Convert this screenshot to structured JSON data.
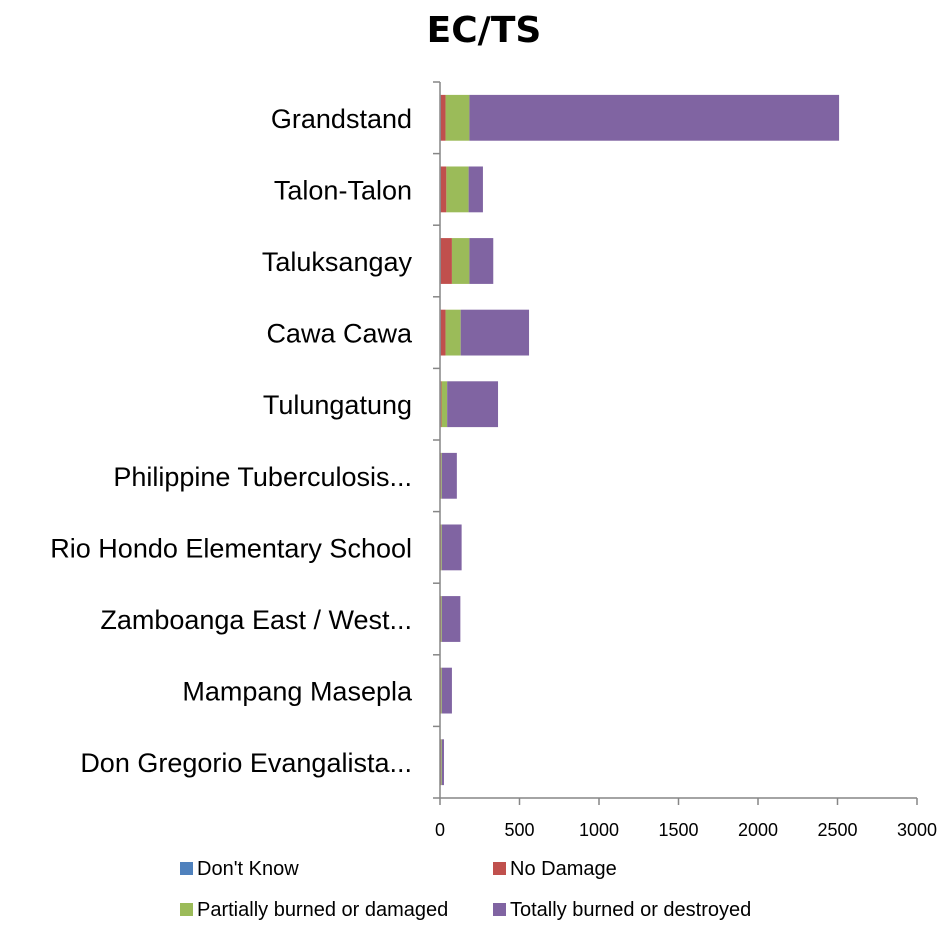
{
  "chart_data": {
    "type": "bar",
    "orientation": "horizontal",
    "stacked": true,
    "title": "EC/TS",
    "xlabel": "",
    "ylabel": "",
    "xlim": [
      0,
      3000
    ],
    "xticks": [
      "0",
      "500",
      "1000",
      "1500",
      "2000",
      "2500",
      "3000"
    ],
    "grid": false,
    "legend_position": "bottom",
    "categories": [
      "Grandstand",
      "Talon-Talon",
      "Taluksangay",
      "Cawa Cawa",
      "Tulungatung",
      "Philippine Tuberculosis...",
      "Rio Hondo Elementary School",
      "Zamboanga East / West...",
      "Mampang Masepla",
      "Don Gregorio Evangalista..."
    ],
    "series": [
      {
        "name": "Don't Know",
        "color": "#4F81BD",
        "values": [
          5,
          5,
          5,
          5,
          5,
          3,
          3,
          3,
          3,
          3
        ]
      },
      {
        "name": "No Damage",
        "color": "#C0504D",
        "values": [
          30,
          35,
          70,
          30,
          5,
          3,
          3,
          3,
          3,
          3
        ]
      },
      {
        "name": "Partially burned or damaged",
        "color": "#9BBB59",
        "values": [
          150,
          140,
          110,
          95,
          35,
          5,
          5,
          5,
          5,
          5
        ]
      },
      {
        "name": "Totally burned or destroyed",
        "color": "#8064A2",
        "values": [
          2325,
          90,
          150,
          430,
          320,
          95,
          125,
          117,
          64,
          14
        ]
      }
    ]
  }
}
